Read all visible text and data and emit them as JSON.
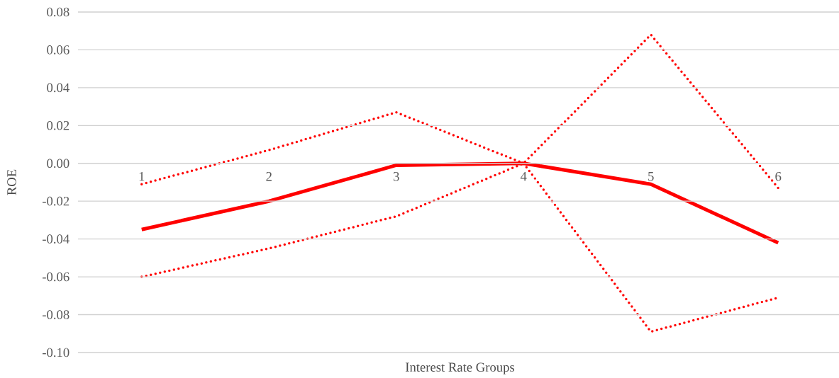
{
  "chart_data": {
    "type": "line",
    "xlabel": "Interest Rate Groups",
    "ylabel": "ROE",
    "categories": [
      "1",
      "2",
      "3",
      "4",
      "5",
      "6"
    ],
    "series": [
      {
        "color": "#ff0000",
        "line_style": "solid",
        "values": [
          -0.035,
          -0.02,
          -0.001,
          0.0,
          -0.011,
          -0.042
        ]
      },
      {
        "color": "#ff0000",
        "line_style": "dotted",
        "values": [
          -0.011,
          0.007,
          0.027,
          0.0,
          -0.089,
          -0.071
        ]
      },
      {
        "color": "#ff0000",
        "line_style": "dotted",
        "values": [
          -0.06,
          -0.045,
          -0.028,
          0.0,
          0.068,
          -0.013
        ]
      }
    ],
    "ylim": [
      -0.1,
      0.08
    ],
    "yticks": [
      {
        "value": -0.1,
        "label": "-0.10"
      },
      {
        "value": -0.08,
        "label": "-0.08"
      },
      {
        "value": -0.06,
        "label": "-0.06"
      },
      {
        "value": -0.04,
        "label": "-0.04"
      },
      {
        "value": -0.02,
        "label": "-0.02"
      },
      {
        "value": 0.0,
        "label": "0.00"
      },
      {
        "value": 0.02,
        "label": "0.02"
      },
      {
        "value": 0.04,
        "label": "0.04"
      },
      {
        "value": 0.06,
        "label": "0.06"
      },
      {
        "value": 0.08,
        "label": "0.08"
      }
    ],
    "grid": "y",
    "marker": "none"
  }
}
